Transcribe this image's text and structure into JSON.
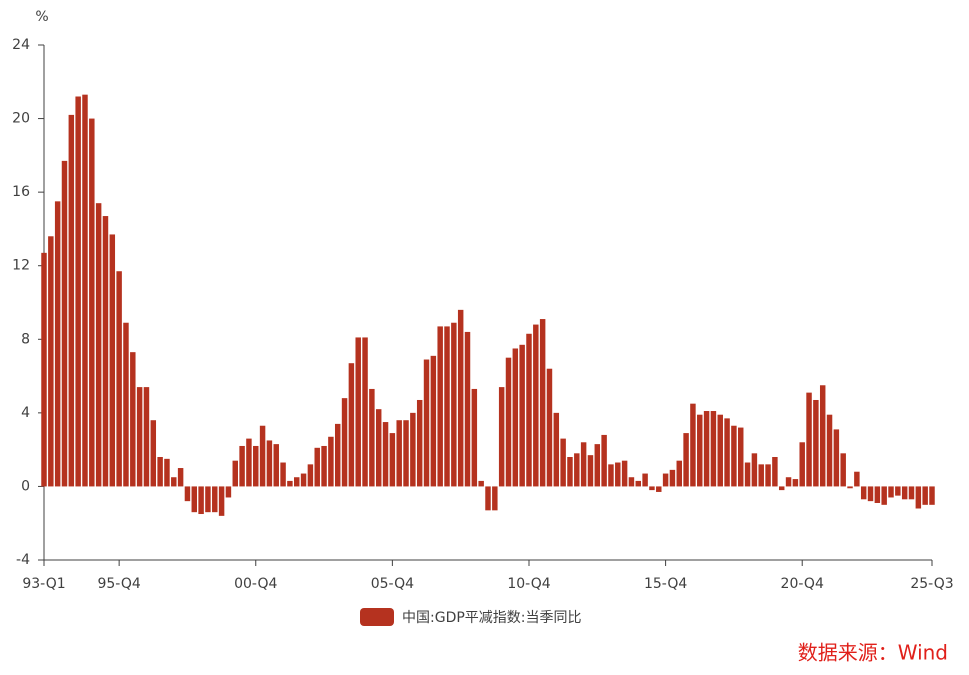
{
  "chart_data": {
    "type": "bar",
    "y_label": "%",
    "source": "数据来源：Wind",
    "categories": [
      "93-Q1",
      null,
      null,
      null,
      null,
      null,
      null,
      null,
      null,
      null,
      null,
      "95-Q4",
      null,
      null,
      null,
      null,
      null,
      null,
      null,
      null,
      null,
      null,
      null,
      null,
      null,
      null,
      null,
      null,
      null,
      null,
      null,
      "00-Q4",
      null,
      null,
      null,
      null,
      null,
      null,
      null,
      null,
      null,
      null,
      null,
      null,
      null,
      null,
      null,
      null,
      null,
      null,
      null,
      "05-Q4",
      null,
      null,
      null,
      null,
      null,
      null,
      null,
      null,
      null,
      null,
      null,
      null,
      null,
      null,
      null,
      null,
      null,
      null,
      null,
      "10-Q4",
      null,
      null,
      null,
      null,
      null,
      null,
      null,
      null,
      null,
      null,
      null,
      null,
      null,
      null,
      null,
      null,
      null,
      null,
      null,
      "15-Q4",
      null,
      null,
      null,
      null,
      null,
      null,
      null,
      null,
      null,
      null,
      null,
      null,
      null,
      null,
      null,
      null,
      null,
      null,
      null,
      "20-Q4",
      null,
      null,
      null,
      null,
      null,
      null,
      null,
      null,
      null,
      null,
      null,
      null,
      null,
      null,
      null,
      null,
      null,
      null,
      "25-Q3"
    ],
    "series": [
      {
        "name": "中国:GDP平减指数:当季同比",
        "color": "#b5321f",
        "values": [
          12.7,
          13.6,
          15.5,
          17.7,
          20.2,
          21.2,
          21.3,
          20.0,
          15.4,
          14.7,
          13.7,
          11.7,
          8.9,
          7.3,
          5.4,
          5.4,
          3.6,
          1.6,
          1.5,
          0.5,
          1.0,
          -0.8,
          -1.4,
          -1.5,
          -1.4,
          -1.4,
          -1.6,
          -0.6,
          1.4,
          2.2,
          2.6,
          2.2,
          3.3,
          2.5,
          2.3,
          1.3,
          0.3,
          0.5,
          0.7,
          1.2,
          2.1,
          2.2,
          2.7,
          3.4,
          4.8,
          6.7,
          8.1,
          8.1,
          5.3,
          4.2,
          3.5,
          2.9,
          3.6,
          3.6,
          4.0,
          4.7,
          6.9,
          7.1,
          8.7,
          8.7,
          8.9,
          9.6,
          8.4,
          5.3,
          0.3,
          -1.3,
          -1.3,
          5.4,
          7.0,
          7.5,
          7.7,
          8.3,
          8.8,
          9.1,
          6.4,
          4.0,
          2.6,
          1.6,
          1.8,
          2.4,
          1.7,
          2.3,
          2.8,
          1.2,
          1.3,
          1.4,
          0.5,
          0.3,
          0.7,
          -0.2,
          -0.3,
          0.7,
          0.9,
          1.4,
          2.9,
          4.5,
          3.9,
          4.1,
          4.1,
          3.9,
          3.7,
          3.3,
          3.2,
          1.3,
          1.8,
          1.2,
          1.2,
          1.6,
          -0.2,
          0.5,
          0.4,
          2.4,
          5.1,
          4.7,
          5.5,
          3.9,
          3.1,
          1.8,
          -0.1,
          0.8,
          -0.7,
          -0.8,
          -0.9,
          -1.0,
          -0.6,
          -0.5,
          -0.7,
          -0.7,
          -1.2,
          -1.0,
          -1.0
        ]
      }
    ],
    "ylim": [
      -4,
      24
    ],
    "yticks": [
      -4,
      0,
      4,
      8,
      12,
      16,
      20,
      24
    ],
    "grid": false
  }
}
